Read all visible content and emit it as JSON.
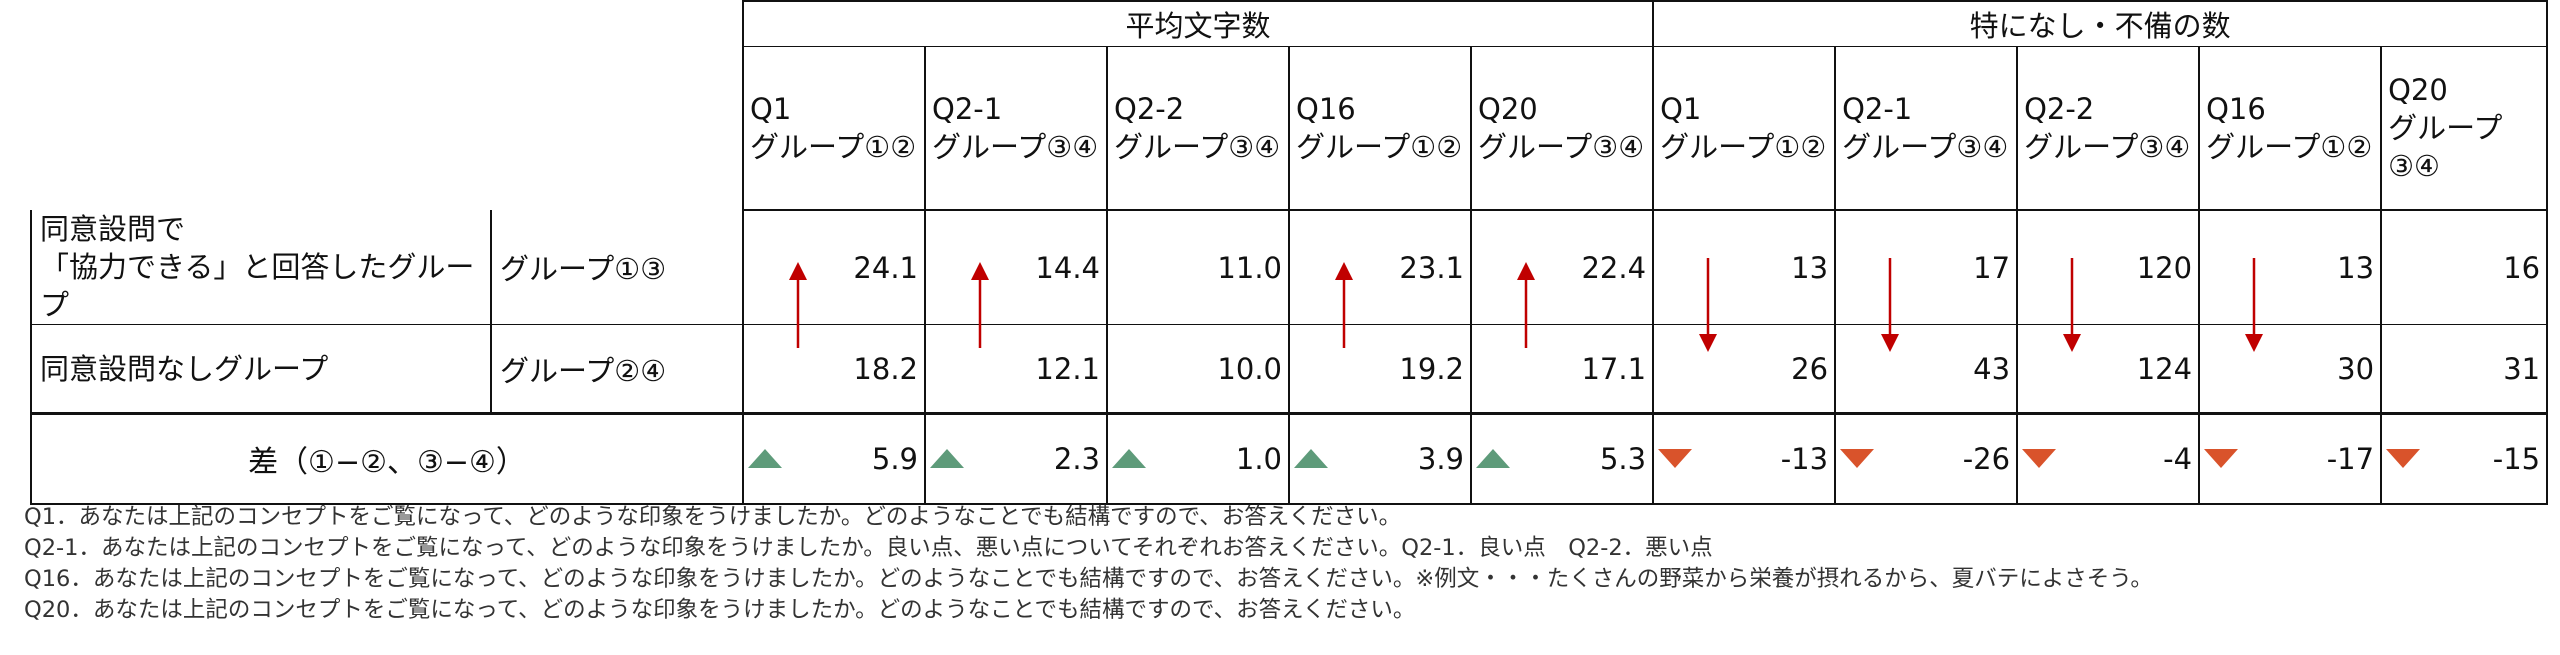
{
  "header": {
    "group_avg": "平均文字数",
    "group_none": "特になし・不備の数"
  },
  "columns": [
    {
      "q": "Q1",
      "g": "グループ①②"
    },
    {
      "q": "Q2-1",
      "g": "グループ③④"
    },
    {
      "q": "Q2-2",
      "g": "グループ③④"
    },
    {
      "q": "Q16",
      "g": "グループ①②"
    },
    {
      "q": "Q20",
      "g": "グループ③④"
    },
    {
      "q": "Q1",
      "g": "グループ①②"
    },
    {
      "q": "Q2-1",
      "g": "グループ③④"
    },
    {
      "q": "Q2-2",
      "g": "グループ③④"
    },
    {
      "q": "Q16",
      "g": "グループ①②"
    },
    {
      "q": "Q20",
      "g": "グループ③④"
    }
  ],
  "rows": [
    {
      "label_line1": "同意設問で",
      "label_line2": "「協力できる」と回答したグループ",
      "group": "グループ①③",
      "values": [
        "24.1",
        "14.4",
        "11.0",
        "23.1",
        "22.4",
        "13",
        "17",
        "120",
        "13",
        "16"
      ]
    },
    {
      "label_line1": "同意設問なしグループ",
      "group": "グループ②④",
      "values": [
        "18.2",
        "12.1",
        "10.0",
        "19.2",
        "17.1",
        "26",
        "43",
        "124",
        "30",
        "31"
      ]
    }
  ],
  "diff": {
    "label": "差（①−②、③−④）",
    "values": [
      "5.9",
      "2.3",
      "1.0",
      "3.9",
      "5.3",
      "-13",
      "-26",
      "-4",
      "-17",
      "-15"
    ],
    "directions": [
      "up",
      "up",
      "up",
      "up",
      "up",
      "down",
      "down",
      "down",
      "down",
      "down"
    ]
  },
  "arrows": {
    "color": "#c00000",
    "marks": [
      {
        "column": 0,
        "direction": "up"
      },
      {
        "column": 1,
        "direction": "up"
      },
      {
        "column": 3,
        "direction": "up"
      },
      {
        "column": 4,
        "direction": "up"
      },
      {
        "column": 5,
        "direction": "down"
      },
      {
        "column": 6,
        "direction": "down"
      },
      {
        "column": 7,
        "direction": "down"
      },
      {
        "column": 8,
        "direction": "down"
      }
    ]
  },
  "colors": {
    "up_triangle": "#5e9b7a",
    "down_triangle": "#d9532b"
  },
  "notes": [
    "Q1．あなたは上記のコンセプトをご覧になって、どのような印象をうけましたか。どのようなことでも結構ですので、お答えください。",
    "Q2-1．あなたは上記のコンセプトをご覧になって、どのような印象をうけましたか。良い点、悪い点についてそれぞれお答えください。Q2-1．良い点　Q2-2．悪い点",
    "Q16．あなたは上記のコンセプトをご覧になって、どのような印象をうけましたか。どのようなことでも結構ですので、お答えください。※例文・・・たくさんの野菜から栄養が摂れるから、夏バテによさそう。",
    "Q20．あなたは上記のコンセプトをご覧になって、どのような印象をうけましたか。どのようなことでも結構ですので、お答えください。"
  ]
}
